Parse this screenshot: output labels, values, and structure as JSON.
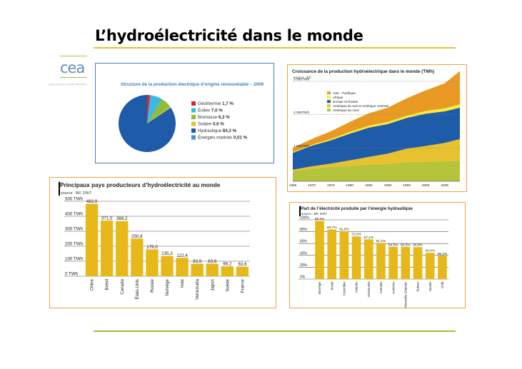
{
  "page": {
    "title": "L’hydroélectricité dans le monde",
    "logo": "cea",
    "logo_tagline": "énergie atomique • énergies alternatives"
  },
  "colors": {
    "accent_yellow": "#e8c22e",
    "accent_green": "#9ac43c",
    "bar_fill": "#e6b81a",
    "panel_orange": "#f0a040",
    "panel_blue": "#3f7fc4"
  },
  "chart_data": [
    {
      "id": "pie",
      "type": "pie",
      "title": "Structure de la production électrique d’origine renouvelable – 2009",
      "slices": [
        {
          "name": "Géothermie",
          "value": 1.7,
          "label": "1,7 %",
          "color": "#d9262e"
        },
        {
          "name": "Éolien",
          "value": 7.0,
          "label": "7,0 %",
          "color": "#3ab8e8"
        },
        {
          "name": "Biomasse",
          "value": 6.3,
          "label": "6,3 %",
          "color": "#8fbd3a"
        },
        {
          "name": "Solaire",
          "value": 0.6,
          "label": "0,6 %",
          "color": "#e8c22e"
        },
        {
          "name": "Hydraulique",
          "value": 84.3,
          "label": "84,3 %",
          "color": "#1e5ba8"
        },
        {
          "name": "Énergies marines",
          "value": 0.01,
          "label": "0,01 %",
          "color": "#4a90d0"
        }
      ]
    },
    {
      "id": "area",
      "type": "area",
      "stacked": true,
      "title": "Croissance de la production hydroélectrique dans le monde (TWh)",
      "subtitle": "source : BP",
      "xlim": [
        1965,
        2009
      ],
      "ylim": [
        0,
        3000
      ],
      "x_ticks": [
        "1965",
        "1970",
        "1975",
        "1980",
        "1985",
        "1990",
        "1995",
        "2000",
        "2005"
      ],
      "y_ticks": [
        {
          "v": 1000,
          "label": "1 000TWh"
        },
        {
          "v": 2000,
          "label": "2 000TWh"
        },
        {
          "v": 3000,
          "label": "3 000TWh"
        }
      ],
      "x": [
        1965,
        1970,
        1975,
        1980,
        1985,
        1990,
        1995,
        2000,
        2005,
        2009
      ],
      "series": [
        {
          "name": "Amérique du nord",
          "color": "#b5c43a",
          "values": [
            300,
            380,
            430,
            470,
            500,
            520,
            580,
            580,
            600,
            620
          ]
        },
        {
          "name": "Amérique du sud et Amérique centrale",
          "color": "#e8c22e",
          "values": [
            50,
            70,
            100,
            160,
            230,
            310,
            400,
            480,
            550,
            650
          ]
        },
        {
          "name": "Europe et Russie",
          "color": "#1e5ba8",
          "values": [
            500,
            620,
            700,
            800,
            880,
            890,
            920,
            970,
            950,
            940
          ]
        },
        {
          "name": "Afrique",
          "color": "#f7ee3a",
          "values": [
            20,
            30,
            40,
            50,
            60,
            60,
            70,
            80,
            90,
            100
          ]
        },
        {
          "name": "Asie - Pacifique",
          "color": "#e89a22",
          "values": [
            130,
            170,
            230,
            300,
            370,
            430,
            520,
            620,
            750,
            1000
          ]
        }
      ]
    },
    {
      "id": "bar1",
      "type": "bar",
      "title": "Principaux pays producteurs d’hydroélectricité au monde",
      "subtitle": "source : BP, 2007",
      "ylim": [
        0,
        500
      ],
      "y_ticks": [
        {
          "v": 0,
          "label": "0 TWh"
        },
        {
          "v": 100,
          "label": "100 TWh"
        },
        {
          "v": 200,
          "label": "200 TWh"
        },
        {
          "v": 300,
          "label": "300 TWh"
        },
        {
          "v": 400,
          "label": "400 TWh"
        },
        {
          "v": 500,
          "label": "500 TWh"
        }
      ],
      "categories": [
        "Chine",
        "Brésil",
        "Canada",
        "États-Unis",
        "Russie",
        "Norvège",
        "Inde",
        "Venezuela",
        "Japon",
        "Suède",
        "France"
      ],
      "values": [
        482.9,
        371.5,
        368.2,
        250.8,
        179.0,
        135.3,
        122.4,
        83.9,
        83.6,
        66.2,
        63.6
      ],
      "value_labels": [
        "482,9",
        "371,5",
        "368,2",
        "250,8",
        "179,0",
        "135,3",
        "122,4",
        "83,9",
        "83,6",
        "66,2",
        "63,6"
      ]
    },
    {
      "id": "bar2",
      "type": "bar",
      "title": "Part de l’électricité produite par l’énergie hydraulique",
      "subtitle": "source : BP, 2007",
      "ylim": [
        0,
        100
      ],
      "y_ticks": [
        {
          "v": 0,
          "label": "0%"
        },
        {
          "v": 20,
          "label": "20%"
        },
        {
          "v": 40,
          "label": "40%"
        },
        {
          "v": 60,
          "label": "60%"
        },
        {
          "v": 80,
          "label": "80%"
        },
        {
          "v": 100,
          "label": "100%"
        }
      ],
      "categories": [
        "Norvège",
        "Brésil",
        "Colombie",
        "Islande",
        "Venezuela",
        "Canada",
        "Autriche",
        "Nouvelle Zélande",
        "Suisse",
        "Suède",
        "Chili"
      ],
      "values": [
        98.2,
        83.7,
        81.0,
        72.0,
        67.1,
        61.1,
        54.5,
        54.5,
        54.0,
        44.4,
        39.4
      ],
      "value_labels": [
        "98,2%",
        "83,7%",
        "81,0%",
        "72,0%",
        "67,1%",
        "61,1%",
        "54,5%",
        "54,5%",
        "54,0%",
        "44,4%",
        "39,4%"
      ]
    }
  ]
}
